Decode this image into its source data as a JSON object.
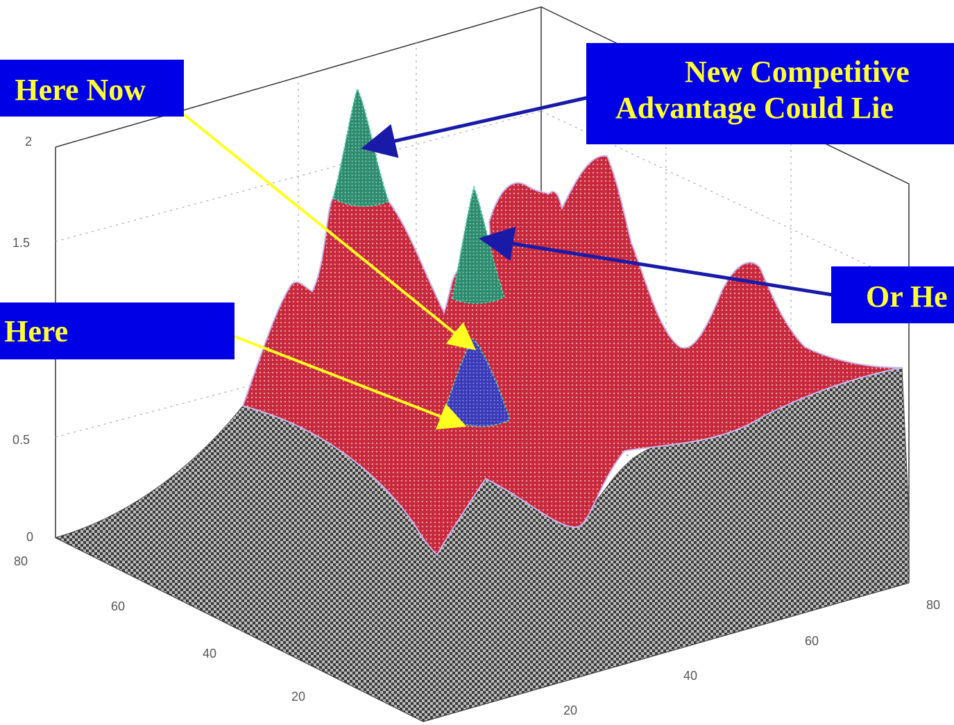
{
  "chart_data": {
    "type": "surface",
    "title": "",
    "z_ticks": [
      "0",
      "0.5",
      "1.5",
      "2"
    ],
    "x_ticks": [
      "20",
      "40",
      "60",
      "80"
    ],
    "y_ticks": [
      "20",
      "40",
      "60",
      "80"
    ],
    "zlim": [
      0,
      2
    ],
    "grid": true,
    "colors": {
      "surface_low": "#2e2e2e",
      "surface_high": "#c8283c",
      "peak_green": "#2e8b6e",
      "peak_blue": "#3a3ab8",
      "callout_bg": "#0000e6",
      "callout_text": "#ffff33",
      "arrow_blue": "#1a1aa8",
      "arrow_yellow": "#ffff22"
    }
  },
  "callouts": {
    "here_now": "Here Now",
    "new_competitive_line1": "New Competitive",
    "new_competitive_line2": "Advantage Could Lie",
    "or_here": "Or He",
    "was_here": "s Here"
  }
}
